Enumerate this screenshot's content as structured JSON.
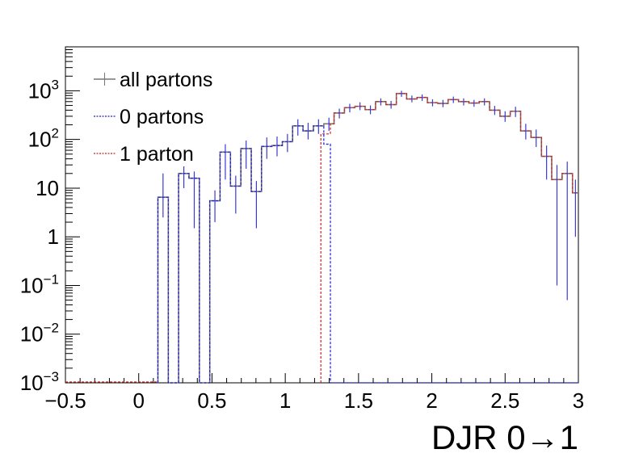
{
  "chart_data": {
    "type": "histogram",
    "title": "",
    "xlabel": "DJR 0→1",
    "ylabel": "",
    "xlim": [
      -0.5,
      3.0
    ],
    "ylim": [
      0.001,
      8000
    ],
    "yscale": "log",
    "grid": false,
    "legend": "top-left",
    "bin_width": 0.0707,
    "x_ticks": [
      {
        "value": -0.5,
        "label": "−0.5"
      },
      {
        "value": 0,
        "label": "0"
      },
      {
        "value": 0.5,
        "label": "0.5"
      },
      {
        "value": 1,
        "label": "1"
      },
      {
        "value": 1.5,
        "label": "1.5"
      },
      {
        "value": 2,
        "label": "2"
      },
      {
        "value": 2.5,
        "label": "2.5"
      },
      {
        "value": 3,
        "label": "3"
      }
    ],
    "y_ticks": [
      {
        "value": 0.001,
        "base": "10",
        "exp": "−3"
      },
      {
        "value": 0.01,
        "base": "10",
        "exp": "−2"
      },
      {
        "value": 0.1,
        "base": "10",
        "exp": "−1"
      },
      {
        "value": 1,
        "base": "1",
        "exp": ""
      },
      {
        "value": 10,
        "base": "10",
        "exp": ""
      },
      {
        "value": 100,
        "base": "10",
        "exp": "2"
      },
      {
        "value": 1000,
        "base": "10",
        "exp": "3"
      }
    ],
    "series": [
      {
        "name": "all partons",
        "color": "#777777",
        "style": "solid",
        "bins": [
          [
            0.131,
            0.202,
            6.5
          ],
          [
            0.202,
            0.272,
            0.001
          ],
          [
            0.272,
            0.343,
            20
          ],
          [
            0.343,
            0.414,
            16
          ],
          [
            0.414,
            0.485,
            0.001
          ],
          [
            0.485,
            0.555,
            5.5
          ],
          [
            0.555,
            0.626,
            55
          ],
          [
            0.626,
            0.697,
            11
          ],
          [
            0.697,
            0.768,
            65
          ],
          [
            0.768,
            0.838,
            8.5
          ],
          [
            0.838,
            0.909,
            72
          ],
          [
            0.909,
            0.98,
            75
          ],
          [
            0.98,
            1.05,
            90
          ],
          [
            1.05,
            1.121,
            190
          ],
          [
            1.121,
            1.192,
            150
          ],
          [
            1.192,
            1.263,
            190
          ],
          [
            1.263,
            1.333,
            210
          ],
          [
            1.333,
            1.404,
            350
          ],
          [
            1.404,
            1.475,
            450
          ],
          [
            1.475,
            1.545,
            480
          ],
          [
            1.545,
            1.616,
            410
          ],
          [
            1.616,
            1.687,
            600
          ],
          [
            1.687,
            1.758,
            520
          ],
          [
            1.758,
            1.828,
            880
          ],
          [
            1.828,
            1.899,
            680
          ],
          [
            1.899,
            1.97,
            730
          ],
          [
            1.97,
            2.04,
            570
          ],
          [
            2.04,
            2.111,
            550
          ],
          [
            2.111,
            2.182,
            660
          ],
          [
            2.182,
            2.253,
            600
          ],
          [
            2.253,
            2.323,
            560
          ],
          [
            2.323,
            2.394,
            600
          ],
          [
            2.394,
            2.465,
            400
          ],
          [
            2.465,
            2.535,
            300
          ],
          [
            2.535,
            2.606,
            380
          ],
          [
            2.606,
            2.677,
            150
          ],
          [
            2.677,
            2.748,
            110
          ],
          [
            2.748,
            2.818,
            45
          ],
          [
            2.818,
            2.889,
            15
          ],
          [
            2.889,
            2.96,
            20
          ],
          [
            2.96,
            3.0,
            8
          ]
        ]
      },
      {
        "name": "0 partons",
        "color": "#1a1ad9",
        "style": "dashed",
        "bins": [
          [
            0.131,
            0.202,
            6.5
          ],
          [
            0.202,
            0.272,
            0.001
          ],
          [
            0.272,
            0.343,
            20
          ],
          [
            0.343,
            0.414,
            16
          ],
          [
            0.414,
            0.485,
            0.001
          ],
          [
            0.485,
            0.555,
            5.5
          ],
          [
            0.555,
            0.626,
            55
          ],
          [
            0.626,
            0.697,
            11
          ],
          [
            0.697,
            0.768,
            65
          ],
          [
            0.768,
            0.838,
            8.5
          ],
          [
            0.838,
            0.909,
            72
          ],
          [
            0.909,
            0.98,
            75
          ],
          [
            0.98,
            1.05,
            90
          ],
          [
            1.05,
            1.121,
            190
          ],
          [
            1.121,
            1.192,
            150
          ],
          [
            1.192,
            1.263,
            190
          ],
          [
            1.263,
            1.308,
            80
          ],
          [
            1.308,
            3.0,
            0.001
          ]
        ]
      },
      {
        "name": "1 parton",
        "color": "#cc2222",
        "style": "dashed",
        "bins": [
          [
            1.243,
            1.308,
            130
          ],
          [
            1.308,
            1.333,
            210
          ],
          [
            1.333,
            1.404,
            350
          ],
          [
            1.404,
            1.475,
            450
          ],
          [
            1.475,
            1.545,
            480
          ],
          [
            1.545,
            1.616,
            410
          ],
          [
            1.616,
            1.687,
            600
          ],
          [
            1.687,
            1.758,
            520
          ],
          [
            1.758,
            1.828,
            880
          ],
          [
            1.828,
            1.899,
            680
          ],
          [
            1.899,
            1.97,
            730
          ],
          [
            1.97,
            2.04,
            570
          ],
          [
            2.04,
            2.111,
            550
          ],
          [
            2.111,
            2.182,
            660
          ],
          [
            2.182,
            2.253,
            600
          ],
          [
            2.253,
            2.323,
            560
          ],
          [
            2.323,
            2.394,
            600
          ],
          [
            2.394,
            2.465,
            400
          ],
          [
            2.465,
            2.535,
            300
          ],
          [
            2.535,
            2.606,
            380
          ],
          [
            2.606,
            2.677,
            150
          ],
          [
            2.677,
            2.748,
            110
          ],
          [
            2.748,
            2.818,
            45
          ],
          [
            2.818,
            2.889,
            15
          ],
          [
            2.889,
            2.96,
            20
          ],
          [
            2.96,
            3.0,
            8
          ]
        ]
      }
    ],
    "error_bars": {
      "color": "#3a3ad6",
      "points": [
        [
          0.166,
          6.5,
          2.5,
          20
        ],
        [
          0.308,
          20,
          10,
          28
        ],
        [
          0.379,
          16,
          1.5,
          22
        ],
        [
          0.52,
          5.5,
          2,
          9
        ],
        [
          0.591,
          55,
          15,
          80
        ],
        [
          0.662,
          11,
          3,
          18
        ],
        [
          0.733,
          65,
          25,
          95
        ],
        [
          0.803,
          8.5,
          1.5,
          14
        ],
        [
          0.874,
          72,
          40,
          110
        ],
        [
          0.944,
          75,
          45,
          115
        ],
        [
          1.015,
          90,
          55,
          130
        ],
        [
          1.086,
          190,
          120,
          260
        ],
        [
          1.156,
          150,
          100,
          220
        ],
        [
          1.227,
          190,
          130,
          260
        ],
        [
          1.298,
          210,
          150,
          280
        ],
        [
          1.369,
          350,
          270,
          430
        ],
        [
          1.44,
          450,
          360,
          540
        ],
        [
          1.51,
          480,
          400,
          580
        ],
        [
          1.581,
          410,
          330,
          500
        ],
        [
          1.652,
          600,
          500,
          700
        ],
        [
          1.722,
          520,
          430,
          620
        ],
        [
          1.793,
          880,
          750,
          1000
        ],
        [
          1.864,
          680,
          580,
          800
        ],
        [
          1.934,
          730,
          620,
          840
        ],
        [
          2.005,
          570,
          480,
          670
        ],
        [
          2.076,
          550,
          460,
          650
        ],
        [
          2.147,
          660,
          560,
          760
        ],
        [
          2.217,
          600,
          500,
          700
        ],
        [
          2.288,
          560,
          470,
          650
        ],
        [
          2.359,
          600,
          500,
          700
        ],
        [
          2.429,
          400,
          320,
          490
        ],
        [
          2.5,
          300,
          230,
          380
        ],
        [
          2.571,
          380,
          290,
          470
        ],
        [
          2.641,
          150,
          100,
          210
        ],
        [
          2.712,
          110,
          70,
          160
        ],
        [
          2.783,
          45,
          15,
          75
        ],
        [
          2.854,
          15,
          0.1,
          30
        ],
        [
          2.924,
          20,
          0.05,
          35
        ],
        [
          2.98,
          8,
          1,
          15
        ]
      ]
    }
  }
}
